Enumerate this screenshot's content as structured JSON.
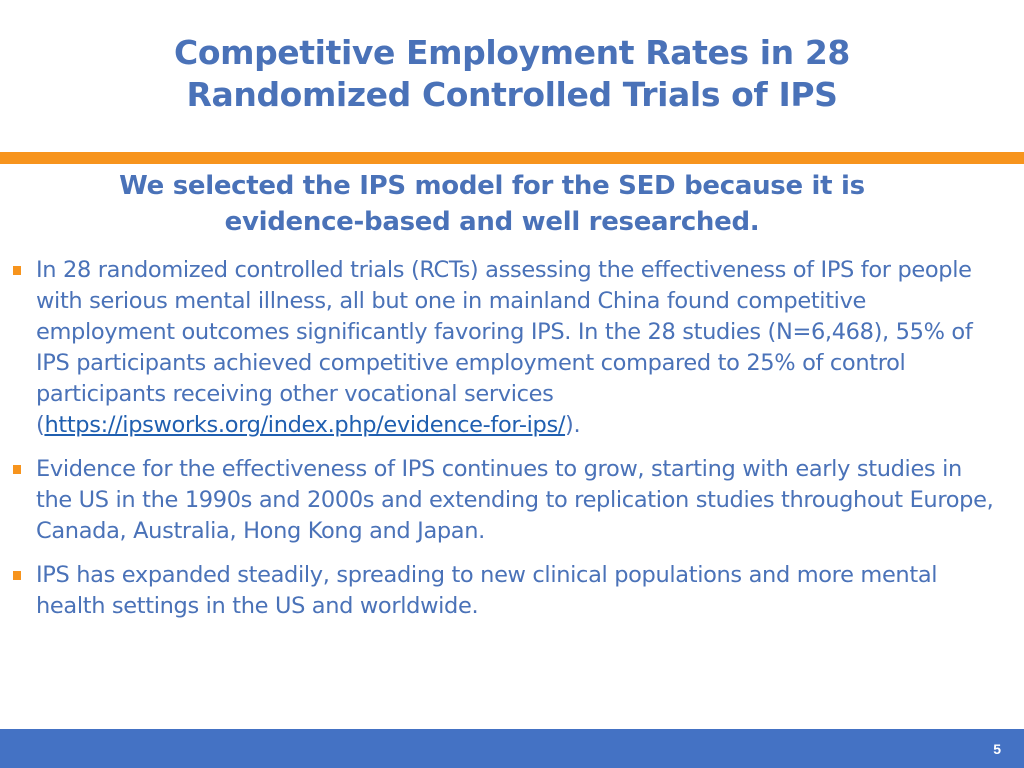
{
  "slide": {
    "title_lines": [
      "Competitive Employment Rates in 28",
      "Randomized Controlled Trials of IPS"
    ],
    "subtitle_lines": [
      "We selected the IPS model for the SED because it is",
      "evidence-based and well researched."
    ],
    "bullets": [
      {
        "text_before_link": "In 28 randomized controlled trials (RCTs) assessing the effectiveness of IPS for people with serious mental illness, all but one in mainland China found competitive employment outcomes significantly favoring IPS. In the 28 studies (N=6,468), 55% of IPS participants achieved competitive employment compared to 25% of control participants receiving other vocational services (",
        "link_text": "https://ipsworks.org/index.php/evidence-for-ips/",
        "text_after_link": ")."
      },
      {
        "text": "Evidence for the effectiveness of IPS continues to grow, starting with early studies in the US in the 1990s and 2000s and extending to replication studies throughout Europe, Canada, Australia, Hong Kong and Japan."
      },
      {
        "text": "IPS has expanded steadily, spreading to new clinical populations and more mental health settings in the US and worldwide."
      }
    ],
    "page_number": "5",
    "colors": {
      "title_text": "#4a72b8",
      "accent_band": "#f7941d",
      "bullet_marker": "#f7941d",
      "link": "#1f5fb0",
      "footer_bar": "#4472c4",
      "page_number_text": "#ffffff"
    }
  }
}
